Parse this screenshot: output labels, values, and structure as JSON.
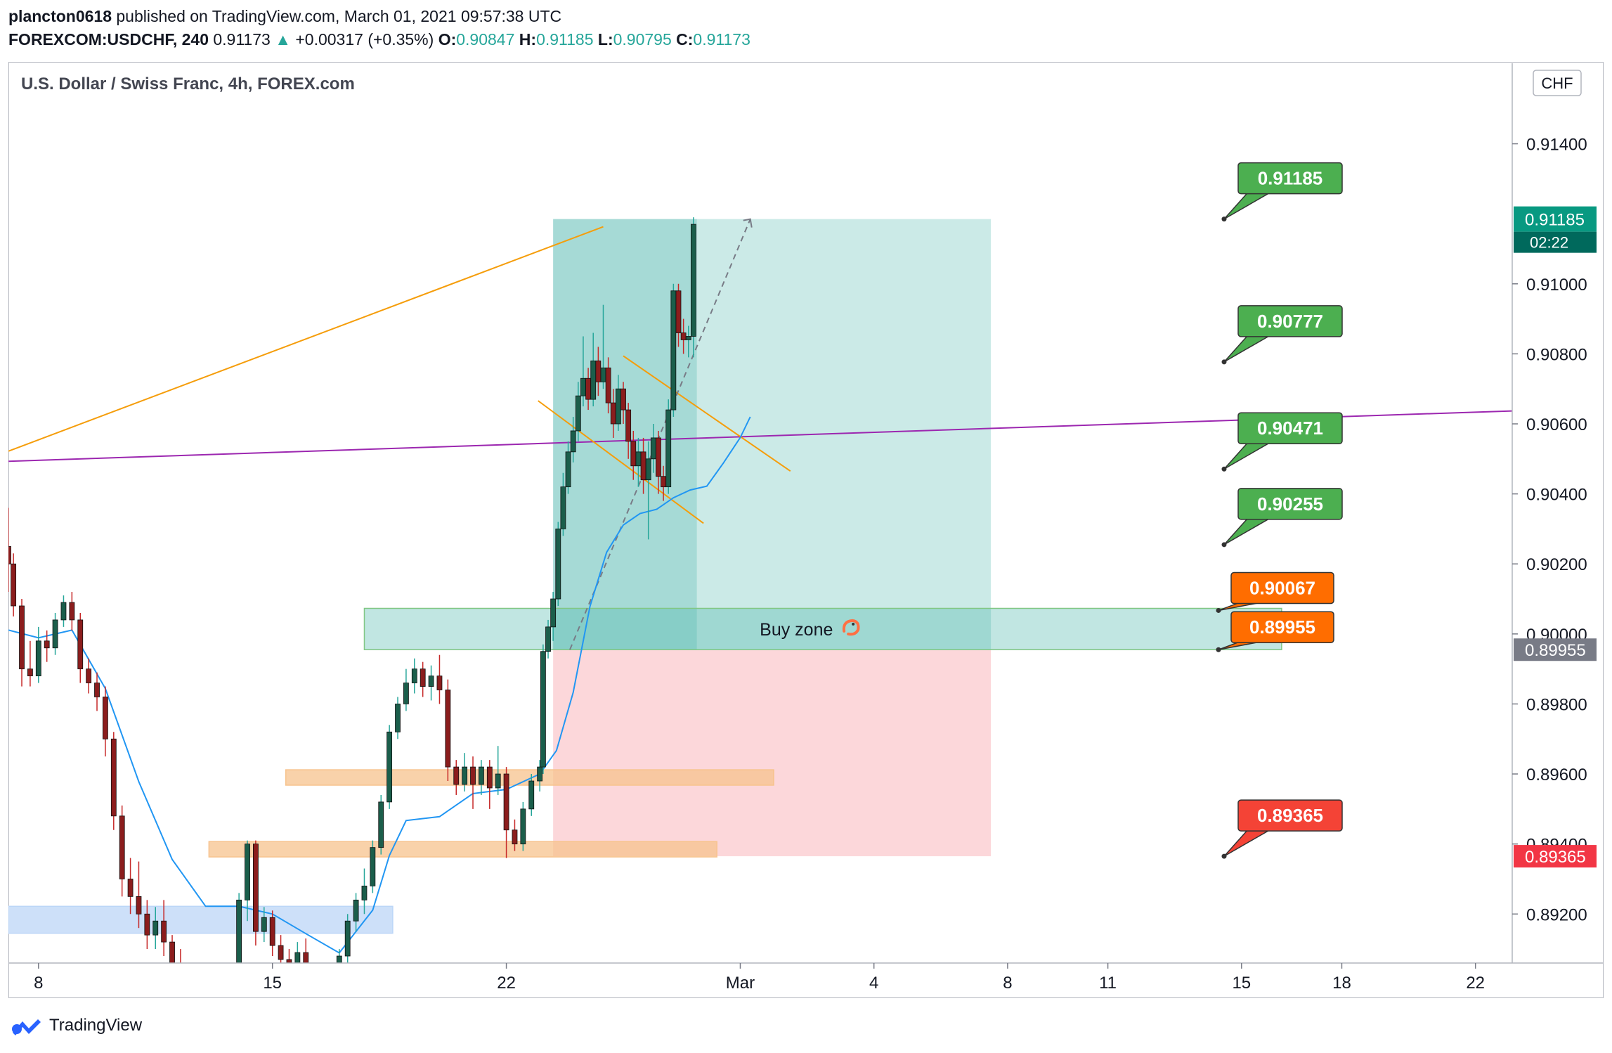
{
  "header": {
    "author": "plancton0618",
    "published_text": "published on TradingView.com, March 01, 2021 09:57:38 UTC",
    "symbol": "FOREXCOM:USDCHF, 240",
    "last": "0.91173",
    "change": "+0.00317 (+0.35%)",
    "o_label": "O:",
    "o": "0.90847",
    "h_label": "H:",
    "h": "0.91185",
    "l_label": "L:",
    "l": "0.90795",
    "c_label": "C:",
    "c": "0.91173"
  },
  "chart_data": {
    "type": "candlestick",
    "title": "U.S. Dollar / Swiss Franc, 4h, FOREX.com",
    "currency": "CHF",
    "y_ticks": [
      "0.91400",
      "0.91000",
      "0.90800",
      "0.90600",
      "0.90400",
      "0.90200",
      "0.90000",
      "0.89800",
      "0.89600",
      "0.89400",
      "0.89200"
    ],
    "y_tick_values": [
      0.914,
      0.91,
      0.908,
      0.906,
      0.904,
      0.902,
      0.9,
      0.898,
      0.896,
      0.894,
      0.892
    ],
    "x_ticks": [
      "8",
      "15",
      "22",
      "Mar",
      "4",
      "8",
      "11",
      "15",
      "18",
      "22"
    ],
    "x_tick_days": [
      8,
      15,
      22,
      29,
      33,
      37,
      40,
      44,
      47,
      51
    ],
    "ylim": [
      0.8906,
      0.9163
    ],
    "xlim": [
      7.1,
      52.1
    ],
    "price_badge": {
      "value": "0.91185",
      "countdown": "02:22",
      "color": "#089981"
    },
    "axis_markers": [
      {
        "value": "0.89955",
        "price": 0.89955,
        "color": "#787b86"
      },
      {
        "value": "0.89365",
        "price": 0.89365,
        "color": "#f23645"
      }
    ],
    "callouts": [
      {
        "label": "0.91185",
        "price": 0.91185,
        "color": "#4caf50"
      },
      {
        "label": "0.90777",
        "price": 0.90777,
        "color": "#4caf50"
      },
      {
        "label": "0.90471",
        "price": 0.90471,
        "color": "#4caf50"
      },
      {
        "label": "0.90255",
        "price": 0.90255,
        "color": "#4caf50"
      },
      {
        "label": "0.90067",
        "price": 0.90067,
        "color": "#ff6d00"
      },
      {
        "label": "0.89955",
        "price": 0.89955,
        "color": "#ff6d00"
      },
      {
        "label": "0.89365",
        "price": 0.89365,
        "color": "#f44336"
      }
    ],
    "buy_zone": {
      "label": "Buy zone",
      "icon": "shrimp-icon",
      "day_start": 17.75,
      "day_end": 45.2,
      "price_low": 0.89955,
      "price_high": 0.90073
    },
    "position": {
      "entry": 0.89955,
      "target": 0.91185,
      "stop": 0.89365,
      "day_start": 23.4,
      "day_end": 36.5
    },
    "zones": [
      {
        "name": "support-1",
        "color": "#f7c38d",
        "day_start": 15.4,
        "day_end": 30.0,
        "price_low": 0.89568,
        "price_high": 0.89612
      },
      {
        "name": "support-2",
        "color": "#f7c38d",
        "day_start": 13.1,
        "day_end": 28.3,
        "price_low": 0.89363,
        "price_high": 0.89407
      },
      {
        "name": "demand",
        "color": "#bcd6f7",
        "day_start": 7.1,
        "day_end": 18.6,
        "price_low": 0.89145,
        "price_high": 0.89222
      }
    ],
    "trendlines": [
      {
        "name": "rising-orange",
        "color": "#f59d0a",
        "day1": 7.1,
        "price1": 0.90522,
        "day2": 24.9,
        "price2": 0.91163
      },
      {
        "name": "purple",
        "color": "#9c27b0",
        "day1": 7.1,
        "price1": 0.90493,
        "day2": 52.1,
        "price2": 0.90637
      },
      {
        "name": "channel-upper",
        "color": "#f59d0a",
        "day1": 25.5,
        "price1": 0.90794,
        "day2": 30.5,
        "price2": 0.90465
      },
      {
        "name": "channel-lower",
        "color": "#f59d0a",
        "day1": 22.95,
        "price1": 0.90666,
        "day2": 27.9,
        "price2": 0.90316
      }
    ],
    "projection_path": [
      [
        23.9,
        0.89955
      ],
      [
        29.3,
        0.91185
      ]
    ],
    "moving_average": [
      [
        7.1,
        0.90011
      ],
      [
        8.0,
        0.89989
      ],
      [
        9.0,
        0.90011
      ],
      [
        10.0,
        0.89844
      ],
      [
        11.0,
        0.89578
      ],
      [
        12.0,
        0.89356
      ],
      [
        13.0,
        0.89222
      ],
      [
        14.0,
        0.89222
      ],
      [
        15.0,
        0.892
      ],
      [
        16.0,
        0.89144
      ],
      [
        17.0,
        0.89089
      ],
      [
        18.0,
        0.89211
      ],
      [
        18.5,
        0.89367
      ],
      [
        19.0,
        0.89467
      ],
      [
        20.0,
        0.89478
      ],
      [
        21.0,
        0.89544
      ],
      [
        22.0,
        0.89556
      ],
      [
        23.0,
        0.896
      ],
      [
        23.5,
        0.89667
      ],
      [
        24.0,
        0.89833
      ],
      [
        24.5,
        0.90078
      ],
      [
        25.0,
        0.90233
      ],
      [
        25.5,
        0.90311
      ],
      [
        26.0,
        0.90344
      ],
      [
        26.5,
        0.90356
      ],
      [
        27.0,
        0.90389
      ],
      [
        27.5,
        0.90411
      ],
      [
        28.0,
        0.90422
      ],
      [
        28.5,
        0.90489
      ],
      [
        29.0,
        0.90561
      ],
      [
        29.3,
        0.9062
      ]
    ],
    "candles": [
      [
        7.1,
        0.9025,
        0.902,
        0.9036,
        0.9012
      ],
      [
        7.25,
        0.902,
        0.9008,
        0.9023,
        0.9005
      ],
      [
        7.5,
        0.9008,
        0.899,
        0.901,
        0.8985
      ],
      [
        7.75,
        0.899,
        0.8988,
        0.8998,
        0.8985
      ],
      [
        8.0,
        0.8988,
        0.8998,
        0.9002,
        0.8986
      ],
      [
        8.25,
        0.8998,
        0.8996,
        0.9001,
        0.8992
      ],
      [
        8.5,
        0.8996,
        0.9004,
        0.9006,
        0.8994
      ],
      [
        8.75,
        0.9004,
        0.9009,
        0.9011,
        0.9002
      ],
      [
        9.0,
        0.9009,
        0.9004,
        0.9012,
        0.9001
      ],
      [
        9.25,
        0.9004,
        0.899,
        0.9006,
        0.8986
      ],
      [
        9.5,
        0.899,
        0.8986,
        0.8993,
        0.8983
      ],
      [
        9.75,
        0.8986,
        0.8982,
        0.8989,
        0.8978
      ],
      [
        10.0,
        0.8982,
        0.897,
        0.8985,
        0.8965
      ],
      [
        10.25,
        0.897,
        0.8948,
        0.8972,
        0.8944
      ],
      [
        10.5,
        0.8948,
        0.893,
        0.8951,
        0.8925
      ],
      [
        10.75,
        0.893,
        0.8925,
        0.8936,
        0.892
      ],
      [
        11.0,
        0.8925,
        0.892,
        0.8935,
        0.8916
      ],
      [
        11.25,
        0.892,
        0.8914,
        0.8924,
        0.891
      ],
      [
        11.5,
        0.8914,
        0.8918,
        0.8922,
        0.891
      ],
      [
        11.75,
        0.8918,
        0.8912,
        0.8924,
        0.8908
      ],
      [
        12.0,
        0.8912,
        0.8904,
        0.8914,
        0.89
      ],
      [
        12.25,
        0.8904,
        0.8898,
        0.891,
        0.8895
      ],
      [
        12.5,
        0.8898,
        0.8894,
        0.8904,
        0.889
      ],
      [
        12.75,
        0.8894,
        0.8892,
        0.89,
        0.8888
      ],
      [
        13.0,
        0.8892,
        0.889,
        0.8898,
        0.8886
      ],
      [
        13.25,
        0.889,
        0.8888,
        0.8894,
        0.8884
      ],
      [
        13.5,
        0.8888,
        0.8892,
        0.8896,
        0.8884
      ],
      [
        13.75,
        0.8892,
        0.889,
        0.8895,
        0.8886
      ],
      [
        14.0,
        0.889,
        0.8924,
        0.8926,
        0.8888
      ],
      [
        14.25,
        0.8924,
        0.894,
        0.8941,
        0.8918
      ],
      [
        14.5,
        0.894,
        0.8915,
        0.8941,
        0.8911
      ],
      [
        14.75,
        0.8915,
        0.8919,
        0.8922,
        0.8912
      ],
      [
        15.0,
        0.8919,
        0.8911,
        0.8921,
        0.8908
      ],
      [
        15.25,
        0.8911,
        0.8907,
        0.8914,
        0.8904
      ],
      [
        15.5,
        0.8907,
        0.8905,
        0.891,
        0.8903
      ],
      [
        15.75,
        0.8905,
        0.8909,
        0.8912,
        0.8902
      ],
      [
        16.0,
        0.8909,
        0.8902,
        0.8913,
        0.89
      ],
      [
        16.5,
        0.8902,
        0.8904,
        0.8906,
        0.8899
      ],
      [
        17.0,
        0.8904,
        0.8908,
        0.891,
        0.8902
      ],
      [
        17.25,
        0.8908,
        0.8918,
        0.892,
        0.8906
      ],
      [
        17.5,
        0.8918,
        0.8924,
        0.8926,
        0.8915
      ],
      [
        17.75,
        0.8924,
        0.8928,
        0.8933,
        0.892
      ],
      [
        18.0,
        0.8928,
        0.8939,
        0.8941,
        0.8926
      ],
      [
        18.25,
        0.8939,
        0.8952,
        0.8954,
        0.8937
      ],
      [
        18.5,
        0.8952,
        0.8972,
        0.8974,
        0.895
      ],
      [
        18.75,
        0.8972,
        0.898,
        0.8982,
        0.897
      ],
      [
        19.0,
        0.898,
        0.8986,
        0.899,
        0.8978
      ],
      [
        19.25,
        0.8986,
        0.899,
        0.8993,
        0.8983
      ],
      [
        19.5,
        0.899,
        0.8985,
        0.8992,
        0.8982
      ],
      [
        19.75,
        0.8985,
        0.8988,
        0.8991,
        0.8981
      ],
      [
        20.0,
        0.8988,
        0.8984,
        0.8994,
        0.898
      ],
      [
        20.25,
        0.8984,
        0.8962,
        0.8987,
        0.8958
      ],
      [
        20.5,
        0.8962,
        0.8957,
        0.8964,
        0.8954
      ],
      [
        20.75,
        0.8957,
        0.8962,
        0.8966,
        0.8955
      ],
      [
        21.0,
        0.8962,
        0.8957,
        0.8965,
        0.895
      ],
      [
        21.25,
        0.8957,
        0.8962,
        0.8964,
        0.8954
      ],
      [
        21.5,
        0.8962,
        0.8956,
        0.8964,
        0.895
      ],
      [
        21.75,
        0.8956,
        0.896,
        0.8968,
        0.8954
      ],
      [
        22.0,
        0.896,
        0.8944,
        0.8962,
        0.8936
      ],
      [
        22.25,
        0.8944,
        0.894,
        0.8947,
        0.8938
      ],
      [
        22.5,
        0.894,
        0.895,
        0.8952,
        0.8938
      ],
      [
        22.75,
        0.895,
        0.8958,
        0.896,
        0.8948
      ],
      [
        23.0,
        0.8958,
        0.8962,
        0.8964,
        0.8955
      ],
      [
        23.25,
        0.8962,
        0.896,
        0.8965,
        0.8958
      ],
      [
        23.5,
        0.896,
        0.8968,
        0.897,
        0.8958
      ],
      [
        23.75,
        0.8968,
        0.8962,
        0.8972,
        0.896
      ],
      [
        24.0,
        0.8962,
        0.896,
        0.8966,
        0.8958
      ],
      [
        24.25,
        0.896,
        0.898,
        0.8982,
        0.8958
      ],
      [
        24.5,
        0.898,
        0.8994,
        0.8996,
        0.8978
      ],
      [
        24.75,
        0.8994,
        0.8986,
        0.8998,
        0.8982
      ],
      [
        25.0,
        0.8986,
        0.8976,
        0.899,
        0.8974
      ],
      [
        25.25,
        0.8976,
        0.8972,
        0.898,
        0.897
      ],
      [
        25.5,
        0.8972,
        0.8968,
        0.8976,
        0.8966
      ],
      [
        25.75,
        0.8968,
        0.8966,
        0.897,
        0.8962
      ],
      [
        26.0,
        0.8966,
        0.8958,
        0.8968,
        0.8954
      ],
      [
        26.25,
        0.8958,
        0.8962,
        0.8966,
        0.8956
      ],
      [
        26.5,
        0.8962,
        0.8976,
        0.8978,
        0.896
      ],
      [
        26.75,
        0.8976,
        0.8991,
        0.9025,
        0.8974
      ],
      [
        27.0,
        0.8991,
        0.8988,
        0.8995,
        0.8984
      ],
      [
        27.25,
        0.8988,
        0.8964,
        0.8992,
        0.896
      ],
      [
        27.5,
        0.8964,
        0.8958,
        0.8967,
        0.8955
      ],
      [
        27.75,
        0.8958,
        0.896,
        0.8966,
        0.895
      ],
      [
        28.0,
        0.896,
        0.8954,
        0.8962,
        0.895
      ],
      [
        28.25,
        0.8954,
        0.8952,
        0.8958,
        0.8948
      ],
      [
        28.5,
        0.8952,
        0.8958,
        0.8962,
        0.895
      ],
      [
        28.75,
        0.8958,
        0.8955,
        0.896,
        0.8952
      ],
      [
        29.0,
        0.8955,
        0.896,
        0.8964,
        0.895
      ],
      [
        29.25,
        0.896,
        0.8958,
        0.8962,
        0.8954
      ]
    ],
    "candles_recent": [
      [
        23.1,
        0.8962,
        0.8995,
        0.8997,
        0.896
      ],
      [
        23.25,
        0.8995,
        0.9002,
        0.9004,
        0.8993
      ],
      [
        23.4,
        0.9002,
        0.901,
        0.9012,
        0.8998
      ],
      [
        23.55,
        0.901,
        0.903,
        0.9032,
        0.9008
      ],
      [
        23.7,
        0.903,
        0.9042,
        0.9046,
        0.9028
      ],
      [
        23.85,
        0.9042,
        0.9052,
        0.9055,
        0.904
      ],
      [
        24.0,
        0.9052,
        0.9058,
        0.9062,
        0.9049
      ],
      [
        24.15,
        0.9058,
        0.9068,
        0.9072,
        0.9055
      ],
      [
        24.3,
        0.9068,
        0.9073,
        0.9085,
        0.9065
      ],
      [
        24.45,
        0.9073,
        0.9067,
        0.9076,
        0.9064
      ],
      [
        24.6,
        0.9067,
        0.9078,
        0.9086,
        0.9065
      ],
      [
        24.75,
        0.9078,
        0.9072,
        0.9082,
        0.9068
      ],
      [
        24.9,
        0.9072,
        0.9076,
        0.9094,
        0.907
      ],
      [
        25.05,
        0.9076,
        0.9066,
        0.9079,
        0.9063
      ],
      [
        25.2,
        0.9066,
        0.906,
        0.907,
        0.9056
      ],
      [
        25.35,
        0.906,
        0.907,
        0.9074,
        0.9058
      ],
      [
        25.5,
        0.907,
        0.9064,
        0.9072,
        0.906
      ],
      [
        25.65,
        0.9064,
        0.9055,
        0.9066,
        0.905
      ],
      [
        25.8,
        0.9055,
        0.9048,
        0.9058,
        0.9044
      ],
      [
        25.95,
        0.9048,
        0.9052,
        0.9056,
        0.9042
      ],
      [
        26.1,
        0.9052,
        0.9044,
        0.9056,
        0.904
      ],
      [
        26.25,
        0.9044,
        0.905,
        0.9055,
        0.9027
      ],
      [
        26.4,
        0.905,
        0.9056,
        0.906,
        0.9046
      ],
      [
        26.55,
        0.9056,
        0.9045,
        0.9058,
        0.904
      ],
      [
        26.7,
        0.9045,
        0.9042,
        0.9048,
        0.9038
      ],
      [
        26.85,
        0.9042,
        0.9064,
        0.9067,
        0.904
      ],
      [
        27.0,
        0.9064,
        0.9098,
        0.91,
        0.9062
      ],
      [
        27.15,
        0.9098,
        0.9086,
        0.91,
        0.9082
      ],
      [
        27.3,
        0.9086,
        0.9084,
        0.909,
        0.908
      ],
      [
        27.45,
        0.9084,
        0.9085,
        0.9088,
        0.9079
      ],
      [
        27.6,
        0.9085,
        0.9117,
        0.9119,
        0.9079
      ]
    ]
  },
  "footer": {
    "brand": "TradingView",
    "icon": "tradingview-logo-icon"
  }
}
